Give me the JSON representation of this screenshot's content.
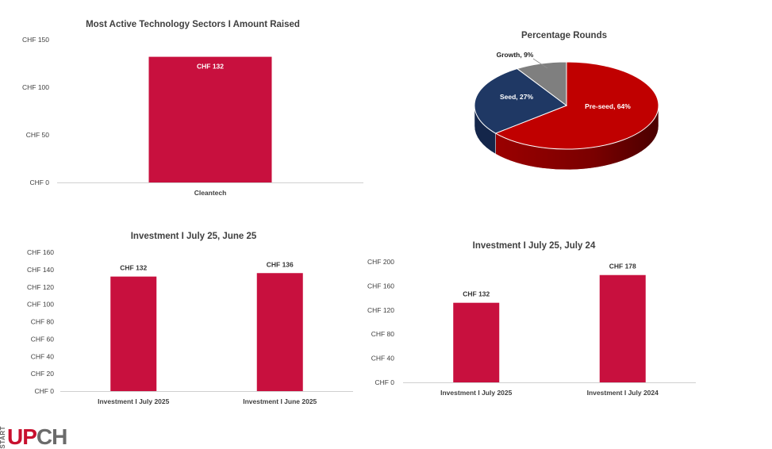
{
  "colors": {
    "bar": "#C8103E",
    "axis": "#d0d0d0",
    "preseed": "#C00000",
    "seed": "#1F3864",
    "growth": "#7F7F7F"
  },
  "logo": {
    "start": "START",
    "up": "UP",
    "ch": "CH"
  },
  "chart_data": [
    {
      "type": "bar",
      "title": "Most Active Technology Sectors I Amount Raised",
      "categories": [
        "Cleantech"
      ],
      "values": [
        132
      ],
      "data_labels": [
        "CHF 132"
      ],
      "ylim": [
        0,
        150
      ],
      "yticks": [
        0,
        50,
        100,
        150
      ],
      "ytick_labels": [
        "CHF 0",
        "CHF 50",
        "CHF 100",
        "CHF 150"
      ],
      "label_position": "inside-top"
    },
    {
      "type": "pie",
      "title": "Percentage Rounds",
      "style": "3d",
      "slices": [
        {
          "label": "Pre-seed, 64%",
          "value": 64,
          "color": "#C00000"
        },
        {
          "label": "Seed, 27%",
          "value": 27,
          "color": "#1F3864"
        },
        {
          "label": "Growth, 9%",
          "value": 9,
          "color": "#7F7F7F"
        }
      ]
    },
    {
      "type": "bar",
      "title": "Investment I July 25, June 25",
      "categories": [
        "Investment I July 2025",
        "Investment I June 2025"
      ],
      "values": [
        132,
        136
      ],
      "data_labels": [
        "CHF 132",
        "CHF 136"
      ],
      "ylim": [
        0,
        160
      ],
      "yticks": [
        0,
        20,
        40,
        60,
        80,
        100,
        120,
        140,
        160
      ],
      "ytick_labels": [
        "CHF 0",
        "CHF 20",
        "CHF 40",
        "CHF 60",
        "CHF 80",
        "CHF 100",
        "CHF 120",
        "CHF 140",
        "CHF 160"
      ],
      "label_position": "above"
    },
    {
      "type": "bar",
      "title": "Investment I July 25, July 24",
      "categories": [
        "Investment I July 2025",
        "Investment I July 2024"
      ],
      "values": [
        132,
        178
      ],
      "data_labels": [
        "CHF 132",
        "CHF 178"
      ],
      "ylim": [
        0,
        200
      ],
      "yticks": [
        0,
        40,
        80,
        120,
        160,
        200
      ],
      "ytick_labels": [
        "CHF 0",
        "CHF 40",
        "CHF 80",
        "CHF 120",
        "CHF 160",
        "CHF 200"
      ],
      "label_position": "above"
    }
  ]
}
